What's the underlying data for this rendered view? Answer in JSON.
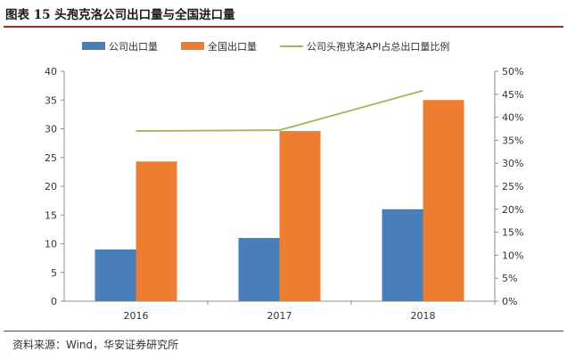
{
  "header": {
    "title": "图表 15 头孢克洛公司出口量与全国进口量"
  },
  "footer": {
    "source": "资料来源：Wind，华安证券研究所"
  },
  "chart_data": {
    "type": "bar",
    "categories": [
      "2016",
      "2017",
      "2018"
    ],
    "series": [
      {
        "name": "公司出口量",
        "axis": "left",
        "kind": "bar",
        "color": "#4a7ebb",
        "values": [
          9,
          11,
          16
        ]
      },
      {
        "name": "全国出口量",
        "axis": "left",
        "kind": "bar",
        "color": "#ed7d31",
        "values": [
          24.3,
          29.6,
          35
        ]
      },
      {
        "name": "公司头孢克洛API占总出口量比例",
        "axis": "right",
        "kind": "line",
        "color": "#9bbb59",
        "values": [
          0.37,
          0.372,
          0.458
        ]
      }
    ],
    "y_left": {
      "min": 0,
      "max": 40,
      "step": 5,
      "ticks": [
        "0",
        "5",
        "10",
        "15",
        "20",
        "25",
        "30",
        "35",
        "40"
      ]
    },
    "y_right": {
      "min": 0,
      "max": 0.5,
      "step": 0.05,
      "ticks": [
        "0%",
        "5%",
        "10%",
        "15%",
        "20%",
        "25%",
        "30%",
        "35%",
        "40%",
        "45%",
        "50%"
      ]
    },
    "legend_position": "top",
    "grid": false
  }
}
